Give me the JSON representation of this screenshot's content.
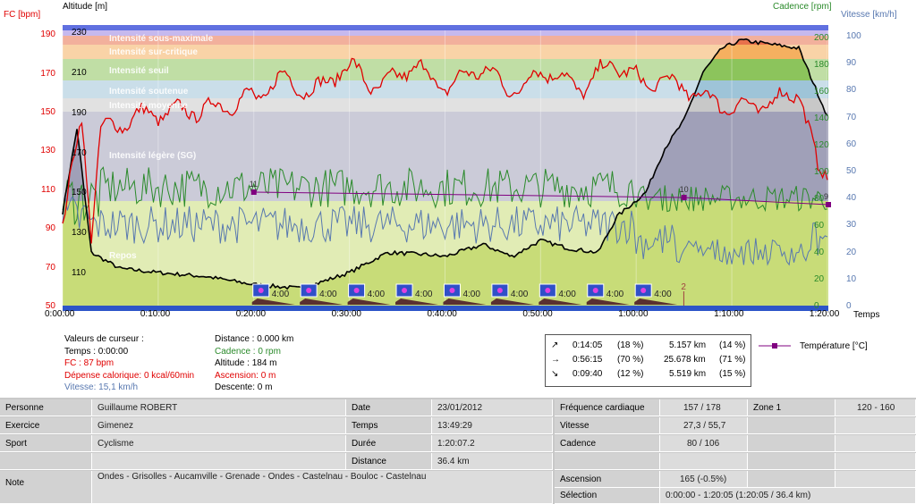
{
  "axes": {
    "left1_title": "FC [bpm]",
    "left2_title": "Altitude  [m]",
    "right1_title": "Cadence [rpm]",
    "right2_title": "Vitesse [km/h]",
    "x_title": "Temps",
    "fc_ticks": [
      "190",
      "170",
      "150",
      "130",
      "110",
      "90",
      "70",
      "50"
    ],
    "alt_ticks": [
      "230",
      "210",
      "190",
      "170",
      "150",
      "130",
      "110"
    ],
    "cad_ticks": [
      "200",
      "180",
      "160",
      "140",
      "120",
      "100",
      "80",
      "60",
      "40",
      "20",
      "0"
    ],
    "speed_ticks": [
      "100",
      "90",
      "80",
      "70",
      "60",
      "50",
      "40",
      "30",
      "20",
      "10",
      "0"
    ],
    "time_ticks": [
      "0:00:00",
      "0:10:00",
      "0:20:00",
      "0:30:00",
      "0:40:00",
      "0:50:00",
      "1:00:00",
      "1:10:00",
      "1:20:00"
    ]
  },
  "zones": [
    {
      "name": "Intensité sous-maximale",
      "color": "#e8704c"
    },
    {
      "name": "Intensité sur-critique",
      "color": "#f5b060"
    },
    {
      "name": "Intensité seuil",
      "color": "#8cc45c"
    },
    {
      "name": "Intensité soutenue",
      "color": "#9ec4d8"
    },
    {
      "name": "Intensité moyenne",
      "color": "#c8c8c8"
    },
    {
      "name": "Intensité légère (SG)",
      "color": "#a0a0b8"
    },
    {
      "name": "Repos",
      "color": "#c8dc78"
    }
  ],
  "markers": {
    "interval_label": "4:00",
    "temperature_labels": [
      "11",
      "10",
      "9"
    ],
    "lap_label": "2"
  },
  "cursor": {
    "col1": [
      "Valeurs de curseur :",
      "Temps : 0:00:00",
      "FC : 87 bpm",
      "Dépense calorique: 0 kcal/60min",
      "Vitesse: 15,1 km/h"
    ],
    "col2": [
      "Distance : 0.000 km",
      "Cadence : 0 rpm",
      "Altitude : 184 m",
      "Ascension: 0 m",
      "Descente: 0 m"
    ]
  },
  "stats": [
    {
      "arrow": "↗",
      "time": "0:14:05",
      "pct": "(18 %)",
      "dist": "5.157 km",
      "dpct": "(14 %)"
    },
    {
      "arrow": "→",
      "time": "0:56:15",
      "pct": "(70 %)",
      "dist": "25.678 km",
      "dpct": "(71 %)"
    },
    {
      "arrow": "↘",
      "time": "0:09:40",
      "pct": "(12 %)",
      "dist": "5.519 km",
      "dpct": "(15 %)"
    }
  ],
  "legend_temp": "Température [°C]",
  "table": {
    "personne_label": "Personne",
    "personne": "Guillaume ROBERT",
    "exercice_label": "Exercice",
    "exercice": "Gimenez",
    "sport_label": "Sport",
    "sport": "Cyclisme",
    "note_label": "Note",
    "note": "Ondes - Grisolles - Aucamville - Grenade - Ondes - Castelnau - Bouloc - Castelnau",
    "date_label": "Date",
    "date": "23/01/2012",
    "temps_label": "Temps",
    "temps": "13:49:29",
    "duree_label": "Durée",
    "duree": "1:20:07.2",
    "distance_label": "Distance",
    "distance": "36.4 km",
    "fc_label": "Fréquence cardiaque",
    "fc": "157 / 178",
    "vitesse_label": "Vitesse",
    "vitesse": "27,3 / 55,7",
    "cadence_label": "Cadence",
    "cadence": "80 / 106",
    "zone_label": "Zone 1",
    "zone": "120 - 160",
    "ascension_label": "Ascension",
    "ascension": "165 (-0.5%)",
    "selection_label": "Sélection",
    "selection": "0:00:00 - 1:20:05 (1:20:05 / 36.4 km)"
  },
  "colors": {
    "fc": "#e00000",
    "altitude": "#000000",
    "cadence": "#2a8a2a",
    "vitesse": "#5878b0",
    "temperature": "#800080",
    "grid_bg": "#ffffff"
  }
}
